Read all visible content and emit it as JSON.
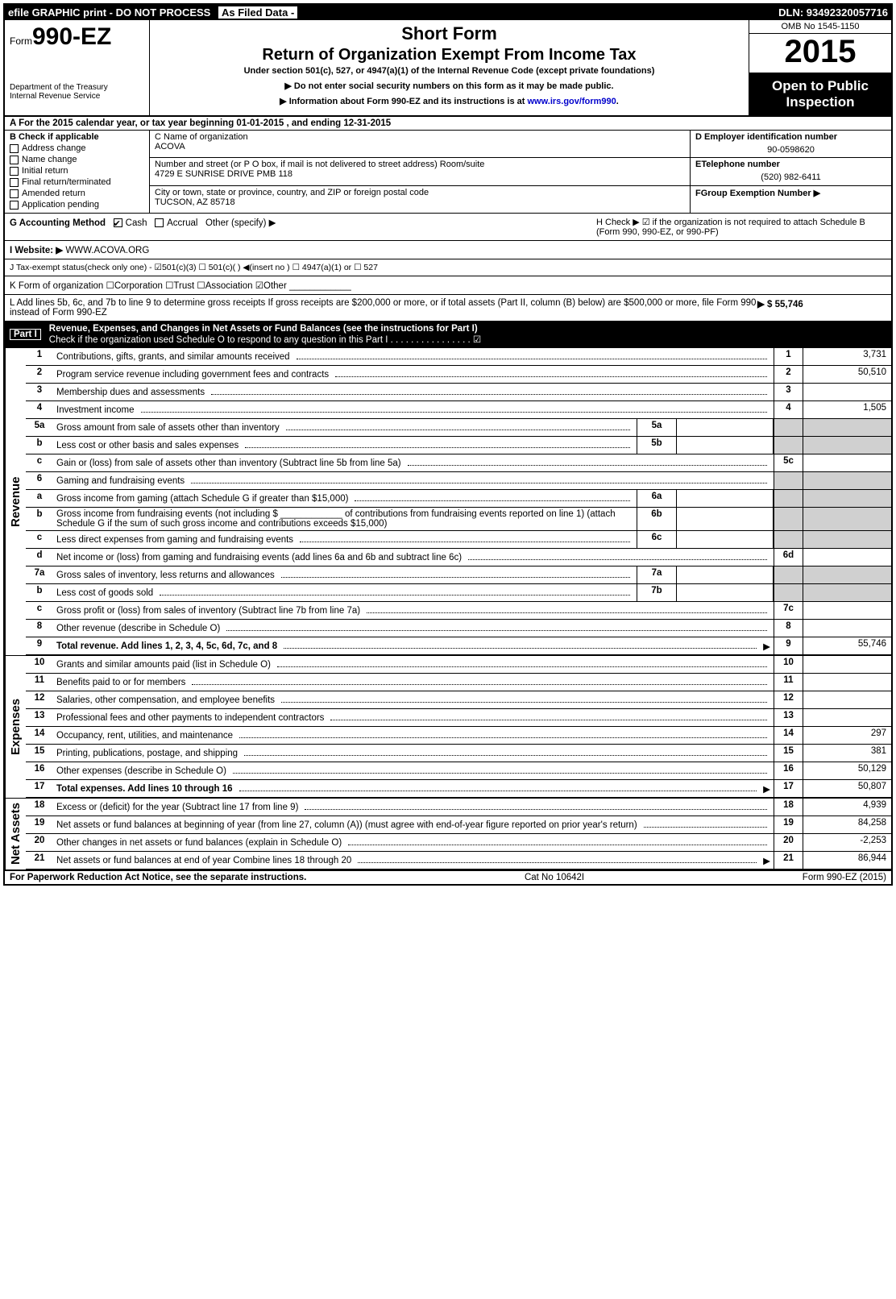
{
  "topbar": {
    "left": "efile GRAPHIC print - DO NOT PROCESS",
    "asfiled": "As Filed Data -",
    "dln": "DLN: 93492320057716"
  },
  "header": {
    "form_prefix": "Form",
    "form_no": "990-EZ",
    "dept1": "Department of the Treasury",
    "dept2": "Internal Revenue Service",
    "shortform": "Short Form",
    "title": "Return of Organization Exempt From Income Tax",
    "subtitle": "Under section 501(c), 527, or 4947(a)(1) of the Internal Revenue Code (except private foundations)",
    "note1": "▶ Do not enter social security numbers on this form as it may be made public.",
    "note2_a": "▶ Information about Form 990-EZ and its instructions is at ",
    "note2_link": "www.irs.gov/form990",
    "note2_b": ".",
    "omb": "OMB No 1545-1150",
    "year": "2015",
    "open": "Open to Public Inspection"
  },
  "rowA": "A  For the 2015 calendar year, or tax year beginning 01-01-2015             , and ending 12-31-2015",
  "blockB": {
    "label": "B  Check if applicable",
    "items": [
      "Address change",
      "Name change",
      "Initial return",
      "Final return/terminated",
      "Amended return",
      "Application pending"
    ]
  },
  "CDEF": {
    "c_name_lbl": "C Name of organization",
    "c_name": "ACOVA",
    "c_addr_lbl": "Number and street (or P O box, if mail is not delivered to street address) Room/suite",
    "c_addr": "4729 E SUNRISE DRIVE PMB 118",
    "c_city_lbl": "City or town, state or province, country, and ZIP or foreign postal code",
    "c_city": "TUCSON, AZ  85718",
    "d_lbl": "D Employer identification number",
    "d_val": "90-0598620",
    "e_lbl": "ETelephone number",
    "e_val": "(520) 982-6411",
    "f_lbl": "FGroup Exemption Number   ▶"
  },
  "G": {
    "label": "G Accounting Method",
    "cash": "Cash",
    "accrual": "Accrual",
    "other": "Other (specify) ▶"
  },
  "H": "H   Check ▶  ☑  if the organization is not required to attach Schedule B (Form 990, 990-EZ, or 990-PF)",
  "I": {
    "label": "I Website: ▶",
    "val": "WWW.ACOVA.ORG"
  },
  "J": "J Tax-exempt status(check only one) - ☑501(c)(3) ☐ 501(c)( ) ◀(insert no ) ☐ 4947(a)(1) or ☐ 527",
  "K": "K Form of organization   ☐Corporation  ☐Trust  ☐Association  ☑Other ____________",
  "L": {
    "text": "L Add lines 5b, 6c, and 7b to line 9 to determine gross receipts  If gross receipts are $200,000 or more, or if total assets (Part II, column (B) below) are $500,000 or more, file Form 990 instead of Form 990-EZ",
    "amount": "▶ $ 55,746"
  },
  "part1": {
    "label": "Part I",
    "title": "Revenue, Expenses, and Changes in Net Assets or Fund Balances (see the instructions for Part I)",
    "check": "Check if the organization used Schedule O to respond to any question in this Part I  . . . . . . . . . . . . . . . . ☑"
  },
  "sections": {
    "revenue": "Revenue",
    "expenses": "Expenses",
    "netassets": "Net Assets"
  },
  "lines": {
    "1": {
      "d": "Contributions, gifts, grants, and similar amounts received",
      "rn": "1",
      "v": "3,731"
    },
    "2": {
      "d": "Program service revenue including government fees and contracts",
      "rn": "2",
      "v": "50,510"
    },
    "3": {
      "d": "Membership dues and assessments",
      "rn": "3",
      "v": ""
    },
    "4": {
      "d": "Investment income",
      "rn": "4",
      "v": "1,505"
    },
    "5a": {
      "d": "Gross amount from sale of assets other than inventory",
      "sub": "5a"
    },
    "5b": {
      "d": "Less  cost or other basis and sales expenses",
      "sub": "5b"
    },
    "5c": {
      "d": "Gain or (loss) from sale of assets other than inventory (Subtract line 5b from line 5a)",
      "rn": "5c",
      "v": ""
    },
    "6": {
      "d": "Gaming and fundraising events"
    },
    "6a": {
      "d": "Gross income from gaming (attach Schedule G if greater than $15,000)",
      "sub": "6a"
    },
    "6b": {
      "d": "Gross income from fundraising events (not including $ ____________ of contributions from fundraising events reported on line 1) (attach Schedule G if the sum of such gross income and contributions exceeds $15,000)",
      "sub": "6b"
    },
    "6c": {
      "d": "Less  direct expenses from gaming and fundraising events",
      "sub": "6c"
    },
    "6d": {
      "d": "Net income or (loss) from gaming and fundraising events (add lines 6a and 6b and subtract line 6c)",
      "rn": "6d",
      "v": ""
    },
    "7a": {
      "d": "Gross sales of inventory, less returns and allowances",
      "sub": "7a"
    },
    "7b": {
      "d": "Less  cost of goods sold",
      "sub": "7b"
    },
    "7c": {
      "d": "Gross profit or (loss) from sales of inventory (Subtract line 7b from line 7a)",
      "rn": "7c",
      "v": ""
    },
    "8": {
      "d": "Other revenue (describe in Schedule O)",
      "rn": "8",
      "v": ""
    },
    "9": {
      "d": "Total revenue. Add lines 1, 2, 3, 4, 5c, 6d, 7c, and 8",
      "rn": "9",
      "v": "55,746",
      "bold": true,
      "arrow": true
    },
    "10": {
      "d": "Grants and similar amounts paid (list in Schedule O)",
      "rn": "10",
      "v": ""
    },
    "11": {
      "d": "Benefits paid to or for members",
      "rn": "11",
      "v": ""
    },
    "12": {
      "d": "Salaries, other compensation, and employee benefits",
      "rn": "12",
      "v": ""
    },
    "13": {
      "d": "Professional fees and other payments to independent contractors",
      "rn": "13",
      "v": ""
    },
    "14": {
      "d": "Occupancy, rent, utilities, and maintenance",
      "rn": "14",
      "v": "297"
    },
    "15": {
      "d": "Printing, publications, postage, and shipping",
      "rn": "15",
      "v": "381"
    },
    "16": {
      "d": "Other expenses (describe in Schedule O)",
      "rn": "16",
      "v": "50,129"
    },
    "17": {
      "d": "Total expenses. Add lines 10 through 16",
      "rn": "17",
      "v": "50,807",
      "bold": true,
      "arrow": true
    },
    "18": {
      "d": "Excess or (deficit) for the year (Subtract line 17 from line 9)",
      "rn": "18",
      "v": "4,939"
    },
    "19": {
      "d": "Net assets or fund balances at beginning of year (from line 27, column (A)) (must agree with end-of-year figure reported on prior year's return)",
      "rn": "19",
      "v": "84,258"
    },
    "20": {
      "d": "Other changes in net assets or fund balances (explain in Schedule O)",
      "rn": "20",
      "v": "-2,253"
    },
    "21": {
      "d": "Net assets or fund balances at end of year  Combine lines 18 through 20",
      "rn": "21",
      "v": "86,944",
      "arrow": true
    }
  },
  "footer": {
    "left": "For Paperwork Reduction Act Notice, see the separate instructions.",
    "mid": "Cat No 10642I",
    "right": "Form 990-EZ (2015)"
  }
}
